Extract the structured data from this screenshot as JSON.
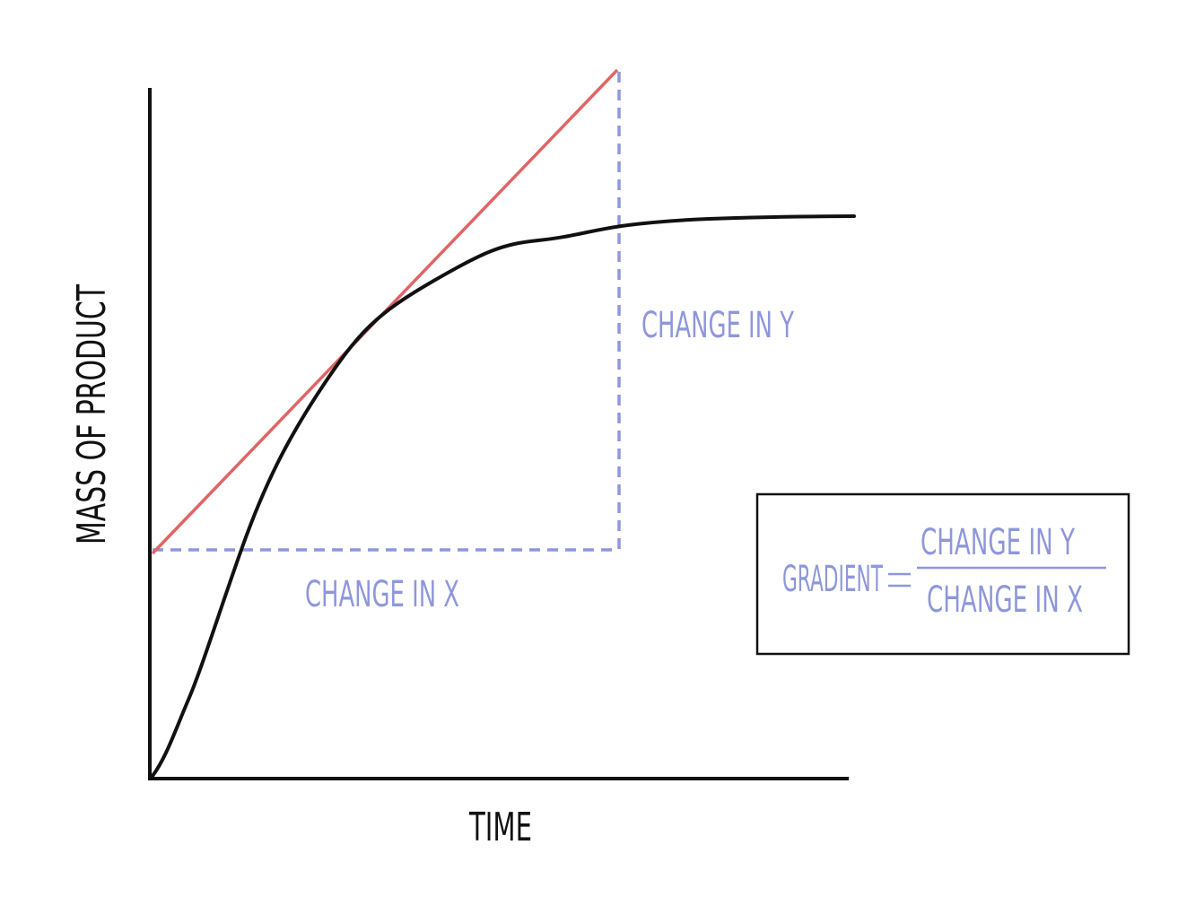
{
  "axes": {
    "y_label": "MASS OF PRODUCT",
    "x_label": "TIME"
  },
  "annotations": {
    "change_in_y": "CHANGE IN Y",
    "change_in_x": "CHANGE IN X"
  },
  "formula": {
    "name": "GRADIENT",
    "numerator": "CHANGE IN Y",
    "denominator": "CHANGE IN X"
  }
}
